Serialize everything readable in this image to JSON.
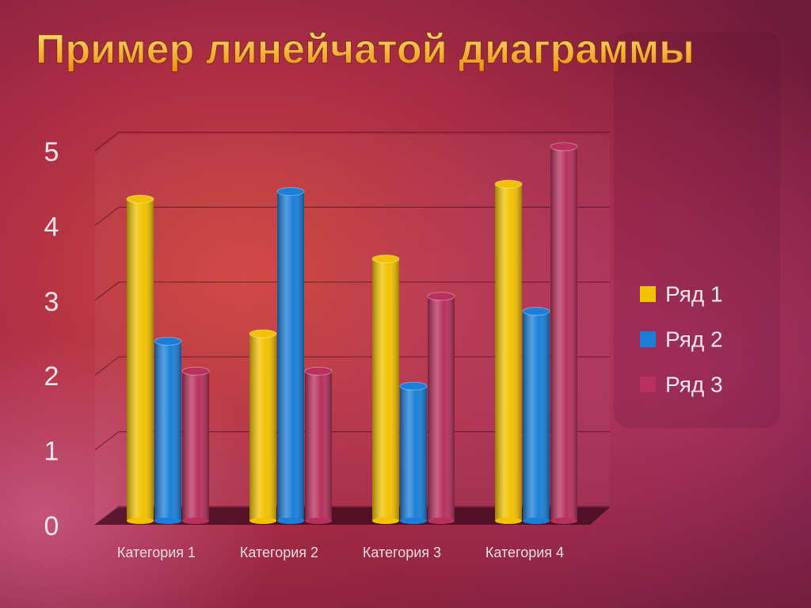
{
  "chart_data": {
    "type": "bar",
    "title": "Пример линейчатой диаграммы",
    "categories": [
      "Категория 1",
      "Категория 2",
      "Категория 3",
      "Категория 4"
    ],
    "series": [
      {
        "name": "Ряд 1",
        "color": "#f2c200",
        "values": [
          4.3,
          2.5,
          3.5,
          4.5
        ]
      },
      {
        "name": "Ряд 2",
        "color": "#1a7fd8",
        "values": [
          2.4,
          4.4,
          1.8,
          2.8
        ]
      },
      {
        "name": "Ряд 3",
        "color": "#b8305e",
        "values": [
          2,
          2,
          3,
          5
        ]
      }
    ],
    "ylim": [
      0,
      5
    ],
    "yticks": [
      0,
      1,
      2,
      3,
      4,
      5
    ],
    "grid": true,
    "legend": "right"
  }
}
